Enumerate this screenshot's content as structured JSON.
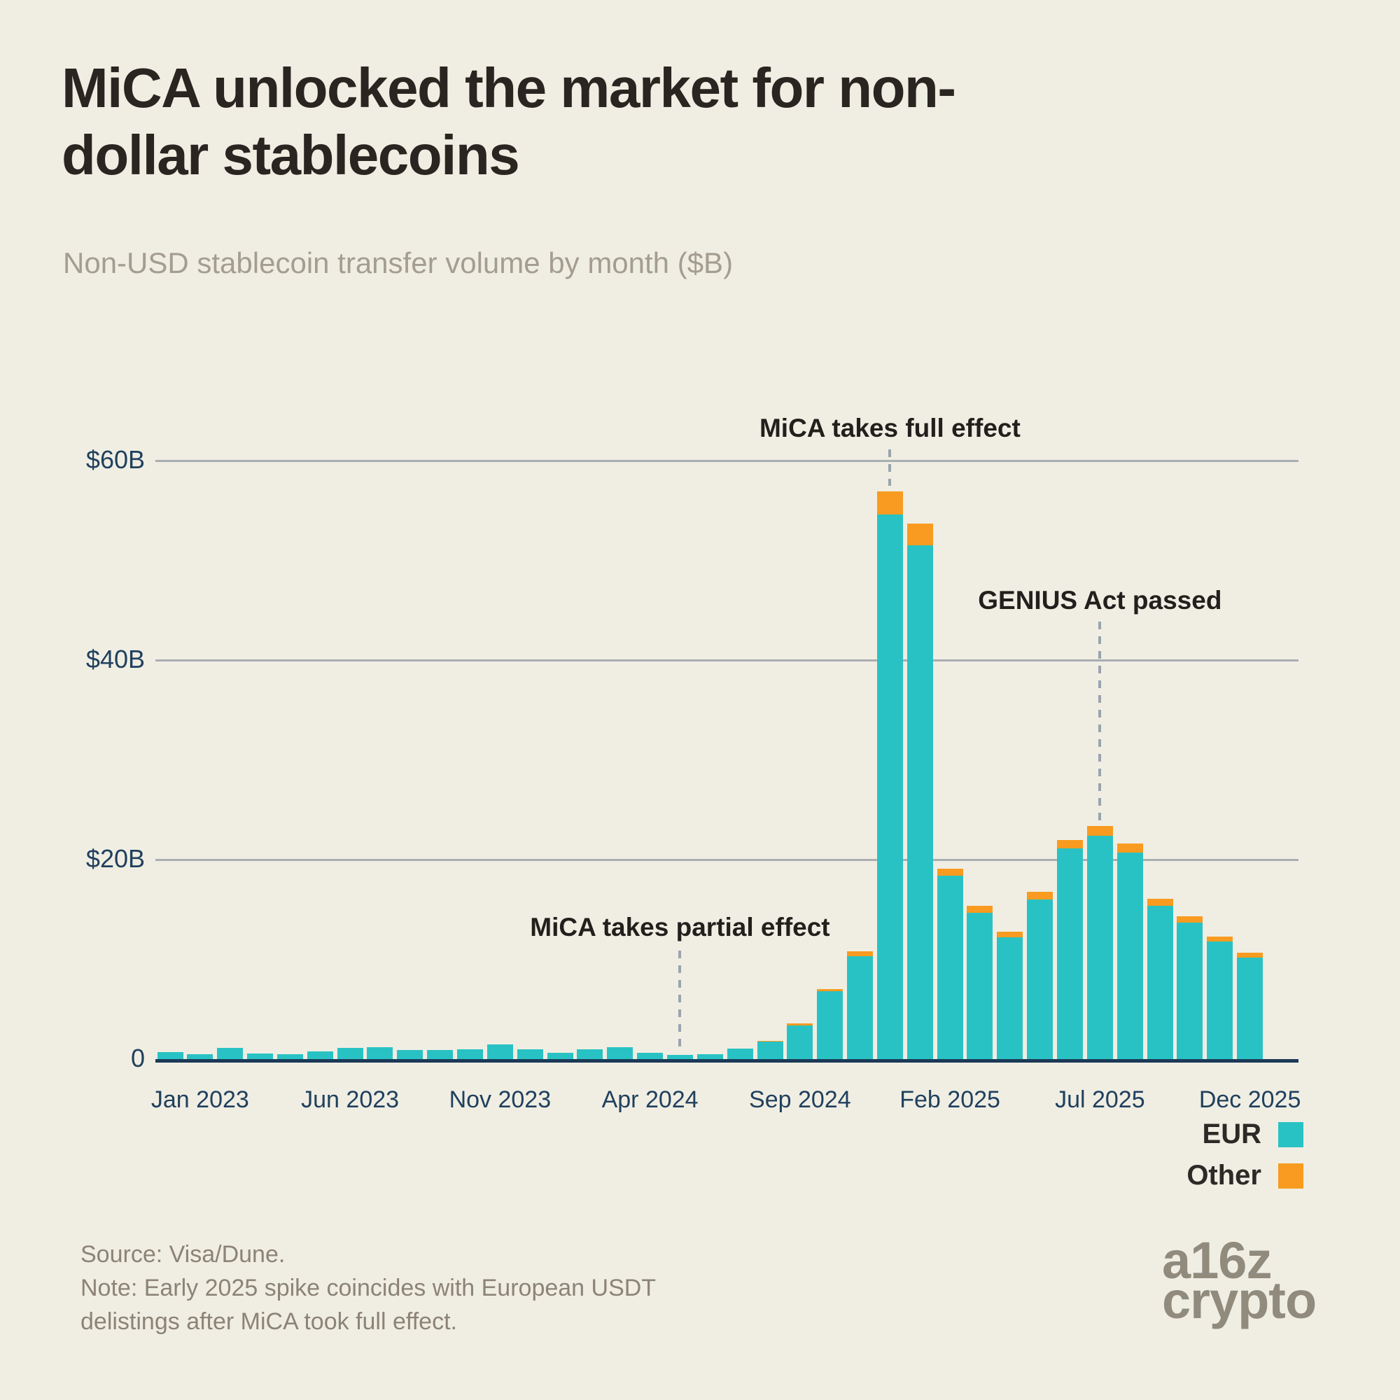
{
  "header": {
    "title_line1": "MiCA unlocked the market for non-",
    "title_line2": "dollar stablecoins",
    "subtitle": "Non-USD stablecoin transfer volume by month ($B)"
  },
  "colors": {
    "background": "#F0EEE3",
    "eur": "#29C2C4",
    "other": "#F99B20",
    "axis_text": "#20405E",
    "baseline": "#1B3A57",
    "gridline": "#A9AEB2",
    "dashed_line": "#9AA4AD",
    "annotation_text": "#22201C",
    "title_text": "#2A2520",
    "subtitle_text": "#A49D90",
    "note_text": "#8C8376",
    "logo_text": "#908B7D"
  },
  "chart_data": {
    "type": "bar",
    "stacked": true,
    "title": "MiCA unlocked the market for non-dollar stablecoins",
    "subtitle": "Non-USD stablecoin transfer volume by month ($B)",
    "unit": "$B",
    "ylim": [
      0,
      63
    ],
    "grid": "horizontal",
    "legend_position": "bottom-right",
    "categories": [
      "Dec 2022",
      "Jan 2023",
      "Feb 2023",
      "Mar 2023",
      "Apr 2023",
      "May 2023",
      "Jun 2023",
      "Jul 2023",
      "Aug 2023",
      "Sep 2023",
      "Oct 2023",
      "Nov 2023",
      "Dec 2023",
      "Jan 2024",
      "Feb 2024",
      "Mar 2024",
      "Apr 2024",
      "May 2024",
      "Jun 2024",
      "Jul 2024",
      "Aug 2024",
      "Sep 2024",
      "Oct 2024",
      "Nov 2024",
      "Dec 2024",
      "Jan 2025",
      "Feb 2025",
      "Mar 2025",
      "Apr 2025",
      "May 2025",
      "Jun 2025",
      "Jul 2025",
      "Aug 2025",
      "Sep 2025",
      "Oct 2025",
      "Nov 2025",
      "Dec 2025"
    ],
    "series": [
      {
        "name": "EUR",
        "color": "#29C2C4",
        "values": [
          0.7,
          0.5,
          1.1,
          0.55,
          0.5,
          0.8,
          1.1,
          1.2,
          0.9,
          0.9,
          1.0,
          1.45,
          0.95,
          0.65,
          0.95,
          1.2,
          0.65,
          0.4,
          0.5,
          1.05,
          1.75,
          3.4,
          6.8,
          10.3,
          54.6,
          51.5,
          18.4,
          14.7,
          12.2,
          16.0,
          21.1,
          22.4,
          20.7,
          15.4,
          13.7,
          11.8,
          10.2
        ]
      },
      {
        "name": "Other",
        "color": "#F99B20",
        "values": [
          0,
          0,
          0,
          0,
          0,
          0,
          0,
          0,
          0,
          0,
          0,
          0,
          0,
          0,
          0,
          0,
          0,
          0,
          0,
          0,
          0.1,
          0.2,
          0.2,
          0.5,
          2.3,
          2.2,
          0.7,
          0.7,
          0.6,
          0.8,
          0.9,
          1.0,
          0.9,
          0.7,
          0.6,
          0.5,
          0.5
        ]
      }
    ],
    "y_ticks": [
      {
        "value": 60,
        "label": "$60B"
      },
      {
        "value": 40,
        "label": "$40B"
      },
      {
        "value": 20,
        "label": "$20B"
      },
      {
        "value": 0,
        "label": "0"
      }
    ],
    "x_ticks": [
      {
        "index": 1,
        "label": "Jan 2023"
      },
      {
        "index": 6,
        "label": "Jun 2023"
      },
      {
        "index": 11,
        "label": "Nov 2023"
      },
      {
        "index": 16,
        "label": "Apr 2024"
      },
      {
        "index": 21,
        "label": "Sep 2024"
      },
      {
        "index": 26,
        "label": "Feb 2025"
      },
      {
        "index": 31,
        "label": "Jul 2025"
      },
      {
        "index": 36,
        "label": "Dec 2025"
      }
    ],
    "annotations": [
      {
        "label": "MiCA takes partial effect",
        "month": "May 2024",
        "month_index": 17,
        "text_y": 1325,
        "line_top": 1358,
        "line_bottom": 1505
      },
      {
        "label": "MiCA takes full effect",
        "month": "Dec 2024",
        "month_index": 24,
        "text_y": 612,
        "line_top": 642,
        "line_bottom": 694
      },
      {
        "label": "GENIUS Act passed",
        "month": "Jul 2025",
        "month_index": 31,
        "text_y": 858,
        "line_top": 888,
        "line_bottom": 1172
      }
    ]
  },
  "legend": {
    "items": [
      {
        "label": "EUR",
        "color": "#29C2C4"
      },
      {
        "label": "Other",
        "color": "#F99B20"
      }
    ]
  },
  "footer": {
    "source_line1": "Source: Visa/Dune.",
    "source_line2": "Note: Early 2025 spike coincides with European USDT",
    "source_line3": "delistings after MiCA took full effect.",
    "logo_line1": "a16z",
    "logo_line2": "crypto"
  }
}
